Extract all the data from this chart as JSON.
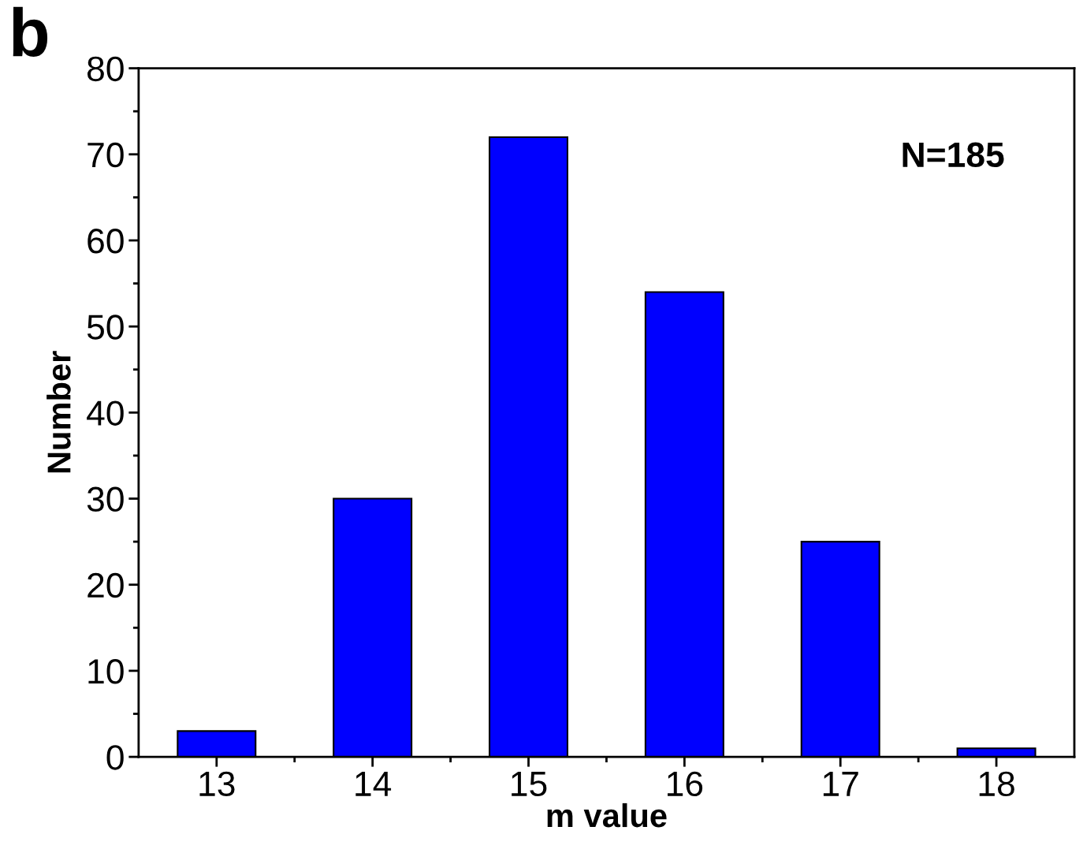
{
  "chart_data": {
    "type": "bar",
    "xlabel": "m value",
    "ylabel": "Number",
    "categories": [
      "13",
      "14",
      "15",
      "16",
      "17",
      "18"
    ],
    "values": [
      3,
      30,
      72,
      54,
      25,
      1
    ],
    "color": "#0000ff",
    "ylim": [
      0,
      80
    ],
    "yticks": [
      0,
      10,
      20,
      30,
      40,
      50,
      60,
      70,
      80
    ],
    "grid": false,
    "annotations": [
      "b",
      "N=185"
    ]
  }
}
